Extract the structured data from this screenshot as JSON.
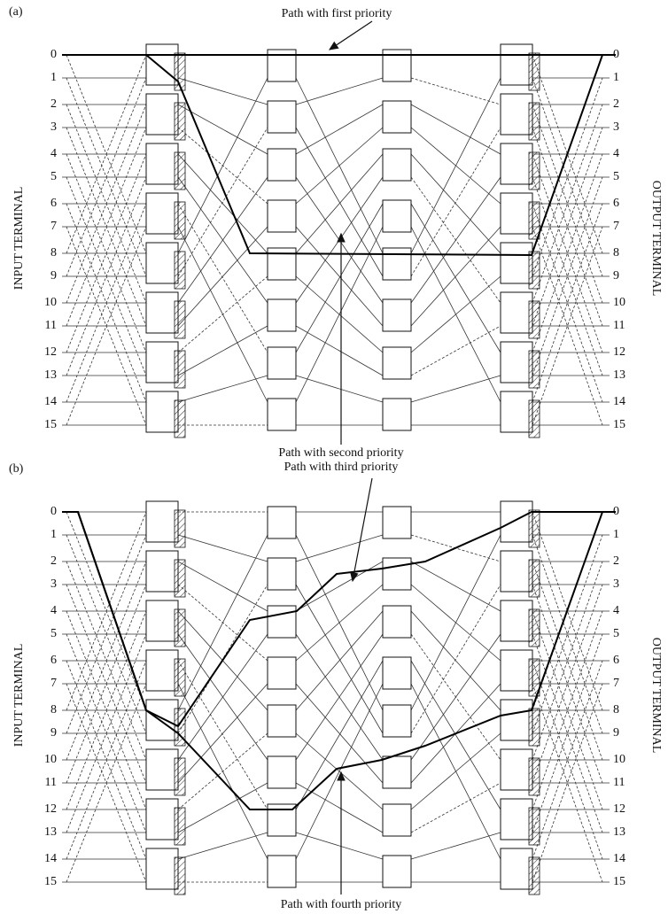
{
  "panels": [
    {
      "label": "(a)",
      "input_axis": "INPUT TERMINAL",
      "output_axis": "OUTPUT TERMINAL",
      "input_terminals": [
        "0",
        "1",
        "2",
        "3",
        "4",
        "5",
        "6",
        "7",
        "8",
        "9",
        "10",
        "11",
        "12",
        "13",
        "14",
        "15"
      ],
      "output_terminals": [
        "0",
        "1",
        "2",
        "3",
        "4",
        "5",
        "6",
        "7",
        "8",
        "9",
        "10",
        "11",
        "12",
        "13",
        "14",
        "15"
      ],
      "annotations": [
        "Path with first priority",
        "Path with second priority"
      ]
    },
    {
      "label": "(b)",
      "input_axis": "INPUT TERMINAL",
      "output_axis": "OUTPUT TERMINAL",
      "input_terminals": [
        "0",
        "1",
        "2",
        "3",
        "4",
        "5",
        "6",
        "7",
        "8",
        "9",
        "10",
        "11",
        "12",
        "13",
        "14",
        "15"
      ],
      "output_terminals": [
        "0",
        "1",
        "2",
        "3",
        "4",
        "5",
        "6",
        "7",
        "8",
        "9",
        "10",
        "11",
        "12",
        "13",
        "14",
        "15"
      ],
      "annotations": [
        "Path with third priority",
        "Path with fourth priority"
      ]
    }
  ]
}
